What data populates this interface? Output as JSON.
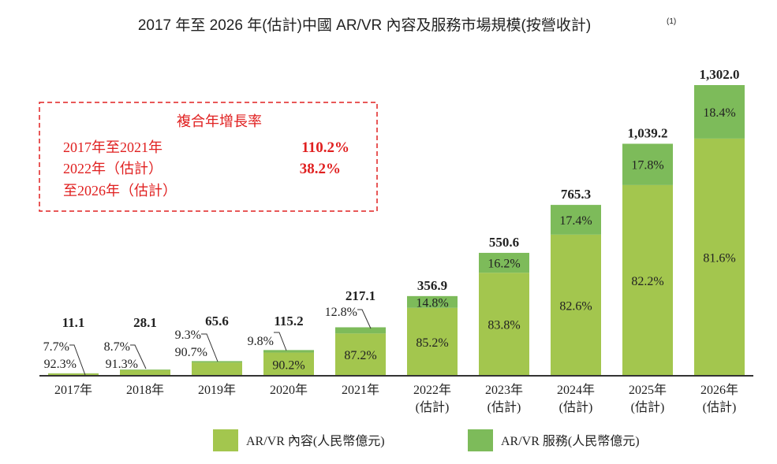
{
  "chart_data": {
    "type": "bar",
    "stacked": true,
    "title": "2017 年至 2026 年(估計)中國 AR/VR 內容及服務市場規模(按營收計)",
    "title_note": "(1)",
    "categories": [
      [
        "2017年"
      ],
      [
        "2018年"
      ],
      [
        "2019年"
      ],
      [
        "2020年"
      ],
      [
        "2021年"
      ],
      [
        "2022年",
        "(估計)"
      ],
      [
        "2023年",
        "(估計)"
      ],
      [
        "2024年",
        "(估計)"
      ],
      [
        "2025年",
        "(估計)"
      ],
      [
        "2026年",
        "(估計)"
      ]
    ],
    "totals": [
      11.1,
      28.1,
      65.6,
      115.2,
      217.1,
      356.9,
      550.6,
      765.3,
      1039.2,
      1302.0
    ],
    "total_labels": [
      "11.1",
      "28.1",
      "65.6",
      "115.2",
      "217.1",
      "356.9",
      "550.6",
      "765.3",
      "1,039.2",
      "1,302.0"
    ],
    "series": [
      {
        "name": "AR/VR 內容(人民幣億元)",
        "color": "#a3c64e",
        "share_pct": [
          92.3,
          91.3,
          90.7,
          90.2,
          87.2,
          85.2,
          83.8,
          82.6,
          82.2,
          81.6
        ],
        "labels": [
          "92.3%",
          "91.3%",
          "90.7%",
          "90.2%",
          "87.2%",
          "85.2%",
          "83.8%",
          "82.6%",
          "82.2%",
          "81.6%"
        ]
      },
      {
        "name": "AR/VR 服務(人民幣億元)",
        "color": "#7dbb5a",
        "share_pct": [
          7.7,
          8.7,
          9.3,
          9.8,
          12.8,
          14.8,
          16.2,
          17.4,
          17.8,
          18.4
        ],
        "labels": [
          "7.7%",
          "8.7%",
          "9.3%",
          "9.8%",
          "12.8%",
          "14.8%",
          "16.2%",
          "17.4%",
          "17.8%",
          "18.4%"
        ]
      }
    ],
    "ylim": [
      0,
      1302.0
    ],
    "grid": false,
    "legend": "bottom",
    "cagr_box": {
      "title": "複合年增長率",
      "rows": [
        {
          "label": "2017年至2021年",
          "value": "110.2%"
        },
        {
          "label": "2022年（估計）",
          "value": "38.2%"
        },
        {
          "label": "至2026年（估計）",
          "value": ""
        }
      ],
      "color": "#e02020"
    }
  }
}
